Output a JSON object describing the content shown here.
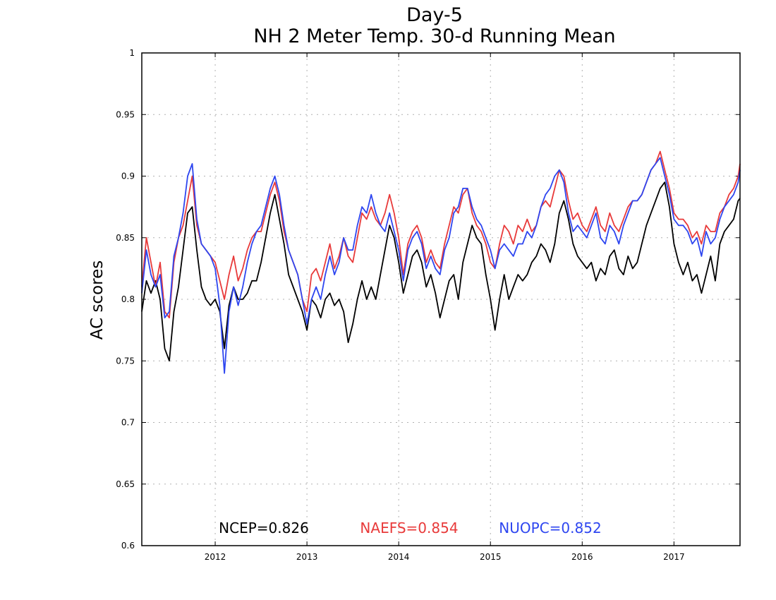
{
  "chart_data": {
    "type": "line",
    "title": "Day-5",
    "subtitle": "NH 2 Meter Temp. 30-d Running Mean",
    "xlabel": "",
    "ylabel": "AC scores",
    "xlim": [
      2011.2,
      2017.72
    ],
    "ylim": [
      0.6,
      1.0
    ],
    "yticks": [
      0.6,
      0.65,
      0.7,
      0.75,
      0.8,
      0.85,
      0.9,
      0.95,
      1
    ],
    "ytick_labels": [
      "0.6",
      "0.65",
      "0.7",
      "0.75",
      "0.8",
      "0.85",
      "0.9",
      "0.95",
      "1"
    ],
    "xticks": [
      2012,
      2013,
      2014,
      2015,
      2016,
      2017
    ],
    "xtick_labels": [
      "2012",
      "2013",
      "2014",
      "2015",
      "2016",
      "2017"
    ],
    "grid": true,
    "legend": "bottom",
    "series": [
      {
        "name": "NCEP",
        "label": "NCEP=0.826",
        "color": "#000000",
        "x": [
          2011.2,
          2011.25,
          2011.3,
          2011.35,
          2011.4,
          2011.45,
          2011.5,
          2011.55,
          2011.6,
          2011.65,
          2011.7,
          2011.75,
          2011.8,
          2011.85,
          2011.9,
          2011.95,
          2012.0,
          2012.05,
          2012.1,
          2012.15,
          2012.2,
          2012.25,
          2012.3,
          2012.35,
          2012.4,
          2012.45,
          2012.5,
          2012.55,
          2012.6,
          2012.65,
          2012.7,
          2012.75,
          2012.8,
          2012.85,
          2012.9,
          2012.95,
          2013.0,
          2013.05,
          2013.1,
          2013.15,
          2013.2,
          2013.25,
          2013.3,
          2013.35,
          2013.4,
          2013.45,
          2013.5,
          2013.55,
          2013.6,
          2013.65,
          2013.7,
          2013.75,
          2013.8,
          2013.85,
          2013.9,
          2013.95,
          2014.0,
          2014.05,
          2014.1,
          2014.15,
          2014.2,
          2014.25,
          2014.3,
          2014.35,
          2014.4,
          2014.45,
          2014.5,
          2014.55,
          2014.6,
          2014.65,
          2014.7,
          2014.75,
          2014.8,
          2014.85,
          2014.9,
          2014.95,
          2015.0,
          2015.05,
          2015.1,
          2015.15,
          2015.2,
          2015.25,
          2015.3,
          2015.35,
          2015.4,
          2015.45,
          2015.5,
          2015.55,
          2015.6,
          2015.65,
          2015.7,
          2015.75,
          2015.8,
          2015.85,
          2015.9,
          2015.95,
          2016.0,
          2016.05,
          2016.1,
          2016.15,
          2016.2,
          2016.25,
          2016.3,
          2016.35,
          2016.4,
          2016.45,
          2016.5,
          2016.55,
          2016.6,
          2016.65,
          2016.7,
          2016.75,
          2016.8,
          2016.85,
          2016.9,
          2016.95,
          2017.0,
          2017.05,
          2017.1,
          2017.15,
          2017.2,
          2017.25,
          2017.3,
          2017.35,
          2017.4,
          2017.45,
          2017.5,
          2017.55,
          2017.6,
          2017.65,
          2017.7,
          2017.72
        ],
        "values": [
          0.79,
          0.815,
          0.805,
          0.815,
          0.8,
          0.76,
          0.75,
          0.79,
          0.81,
          0.84,
          0.87,
          0.875,
          0.84,
          0.81,
          0.8,
          0.795,
          0.8,
          0.79,
          0.76,
          0.795,
          0.81,
          0.8,
          0.8,
          0.805,
          0.815,
          0.815,
          0.83,
          0.85,
          0.87,
          0.885,
          0.865,
          0.845,
          0.82,
          0.81,
          0.8,
          0.79,
          0.775,
          0.8,
          0.795,
          0.785,
          0.8,
          0.805,
          0.795,
          0.8,
          0.79,
          0.765,
          0.78,
          0.8,
          0.815,
          0.8,
          0.81,
          0.8,
          0.82,
          0.84,
          0.86,
          0.85,
          0.83,
          0.805,
          0.82,
          0.835,
          0.84,
          0.83,
          0.81,
          0.82,
          0.805,
          0.785,
          0.8,
          0.815,
          0.82,
          0.8,
          0.83,
          0.845,
          0.86,
          0.85,
          0.845,
          0.82,
          0.8,
          0.775,
          0.8,
          0.82,
          0.8,
          0.81,
          0.82,
          0.815,
          0.82,
          0.83,
          0.835,
          0.845,
          0.84,
          0.83,
          0.845,
          0.87,
          0.88,
          0.865,
          0.845,
          0.835,
          0.83,
          0.825,
          0.83,
          0.815,
          0.825,
          0.82,
          0.835,
          0.84,
          0.825,
          0.82,
          0.835,
          0.825,
          0.83,
          0.845,
          0.86,
          0.87,
          0.88,
          0.89,
          0.895,
          0.875,
          0.845,
          0.83,
          0.82,
          0.83,
          0.815,
          0.82,
          0.805,
          0.82,
          0.835,
          0.815,
          0.845,
          0.855,
          0.86,
          0.865,
          0.88,
          0.882
        ]
      },
      {
        "name": "NAEFS",
        "label": "NAEFS=0.854",
        "color": "#e83a3a",
        "x": [
          2011.2,
          2011.25,
          2011.3,
          2011.35,
          2011.4,
          2011.45,
          2011.5,
          2011.55,
          2011.6,
          2011.65,
          2011.7,
          2011.75,
          2011.8,
          2011.85,
          2011.9,
          2011.95,
          2012.0,
          2012.05,
          2012.1,
          2012.15,
          2012.2,
          2012.25,
          2012.3,
          2012.35,
          2012.4,
          2012.45,
          2012.5,
          2012.55,
          2012.6,
          2012.65,
          2012.7,
          2012.75,
          2012.8,
          2012.85,
          2012.9,
          2012.95,
          2013.0,
          2013.05,
          2013.1,
          2013.15,
          2013.2,
          2013.25,
          2013.3,
          2013.35,
          2013.4,
          2013.45,
          2013.5,
          2013.55,
          2013.6,
          2013.65,
          2013.7,
          2013.75,
          2013.8,
          2013.85,
          2013.9,
          2013.95,
          2014.0,
          2014.05,
          2014.1,
          2014.15,
          2014.2,
          2014.25,
          2014.3,
          2014.35,
          2014.4,
          2014.45,
          2014.5,
          2014.55,
          2014.6,
          2014.65,
          2014.7,
          2014.75,
          2014.8,
          2014.85,
          2014.9,
          2014.95,
          2015.0,
          2015.05,
          2015.1,
          2015.15,
          2015.2,
          2015.25,
          2015.3,
          2015.35,
          2015.4,
          2015.45,
          2015.5,
          2015.55,
          2015.6,
          2015.65,
          2015.7,
          2015.75,
          2015.8,
          2015.85,
          2015.9,
          2015.95,
          2016.0,
          2016.05,
          2016.1,
          2016.15,
          2016.2,
          2016.25,
          2016.3,
          2016.35,
          2016.4,
          2016.45,
          2016.5,
          2016.55,
          2016.6,
          2016.65,
          2016.7,
          2016.75,
          2016.8,
          2016.85,
          2016.9,
          2016.95,
          2017.0,
          2017.05,
          2017.1,
          2017.15,
          2017.2,
          2017.25,
          2017.3,
          2017.35,
          2017.4,
          2017.45,
          2017.5,
          2017.55,
          2017.6,
          2017.65,
          2017.7,
          2017.72
        ],
        "values": [
          0.81,
          0.85,
          0.83,
          0.81,
          0.83,
          0.79,
          0.785,
          0.83,
          0.85,
          0.86,
          0.88,
          0.9,
          0.86,
          0.845,
          0.84,
          0.835,
          0.83,
          0.815,
          0.8,
          0.82,
          0.835,
          0.815,
          0.825,
          0.84,
          0.85,
          0.855,
          0.855,
          0.87,
          0.885,
          0.895,
          0.88,
          0.855,
          0.84,
          0.83,
          0.82,
          0.8,
          0.79,
          0.82,
          0.825,
          0.815,
          0.83,
          0.845,
          0.825,
          0.835,
          0.85,
          0.835,
          0.83,
          0.85,
          0.87,
          0.865,
          0.875,
          0.865,
          0.86,
          0.87,
          0.885,
          0.87,
          0.85,
          0.82,
          0.845,
          0.855,
          0.86,
          0.85,
          0.83,
          0.84,
          0.83,
          0.825,
          0.845,
          0.86,
          0.875,
          0.87,
          0.885,
          0.89,
          0.87,
          0.86,
          0.855,
          0.845,
          0.83,
          0.825,
          0.845,
          0.86,
          0.855,
          0.845,
          0.86,
          0.855,
          0.865,
          0.855,
          0.86,
          0.875,
          0.88,
          0.875,
          0.89,
          0.905,
          0.9,
          0.88,
          0.865,
          0.87,
          0.86,
          0.855,
          0.865,
          0.875,
          0.86,
          0.855,
          0.87,
          0.86,
          0.855,
          0.865,
          0.875,
          0.88,
          0.88,
          0.885,
          0.895,
          0.905,
          0.91,
          0.92,
          0.905,
          0.89,
          0.87,
          0.865,
          0.865,
          0.86,
          0.85,
          0.855,
          0.845,
          0.86,
          0.855,
          0.855,
          0.87,
          0.875,
          0.885,
          0.89,
          0.9,
          0.91
        ]
      },
      {
        "name": "NUOPC",
        "label": "NUOPC=0.852",
        "color": "#2e46f0",
        "x": [
          2011.2,
          2011.25,
          2011.3,
          2011.35,
          2011.4,
          2011.45,
          2011.5,
          2011.55,
          2011.6,
          2011.65,
          2011.7,
          2011.75,
          2011.8,
          2011.85,
          2011.9,
          2011.95,
          2012.0,
          2012.05,
          2012.1,
          2012.15,
          2012.2,
          2012.25,
          2012.3,
          2012.35,
          2012.4,
          2012.45,
          2012.5,
          2012.55,
          2012.6,
          2012.65,
          2012.7,
          2012.75,
          2012.8,
          2012.85,
          2012.9,
          2012.95,
          2013.0,
          2013.05,
          2013.1,
          2013.15,
          2013.2,
          2013.25,
          2013.3,
          2013.35,
          2013.4,
          2013.45,
          2013.5,
          2013.55,
          2013.6,
          2013.65,
          2013.7,
          2013.75,
          2013.8,
          2013.85,
          2013.9,
          2013.95,
          2014.0,
          2014.05,
          2014.1,
          2014.15,
          2014.2,
          2014.25,
          2014.3,
          2014.35,
          2014.4,
          2014.45,
          2014.5,
          2014.55,
          2014.6,
          2014.65,
          2014.7,
          2014.75,
          2014.8,
          2014.85,
          2014.9,
          2014.95,
          2015.0,
          2015.05,
          2015.1,
          2015.15,
          2015.2,
          2015.25,
          2015.3,
          2015.35,
          2015.4,
          2015.45,
          2015.5,
          2015.55,
          2015.6,
          2015.65,
          2015.7,
          2015.75,
          2015.8,
          2015.85,
          2015.9,
          2015.95,
          2016.0,
          2016.05,
          2016.1,
          2016.15,
          2016.2,
          2016.25,
          2016.3,
          2016.35,
          2016.4,
          2016.45,
          2016.5,
          2016.55,
          2016.6,
          2016.65,
          2016.7,
          2016.75,
          2016.8,
          2016.85,
          2016.9,
          2016.95,
          2017.0,
          2017.05,
          2017.1,
          2017.15,
          2017.2,
          2017.25,
          2017.3,
          2017.35,
          2017.4,
          2017.45,
          2017.5,
          2017.55,
          2017.6,
          2017.65,
          2017.7,
          2017.72
        ],
        "values": [
          0.805,
          0.84,
          0.82,
          0.81,
          0.82,
          0.785,
          0.79,
          0.835,
          0.85,
          0.87,
          0.9,
          0.91,
          0.865,
          0.845,
          0.84,
          0.835,
          0.825,
          0.795,
          0.74,
          0.79,
          0.81,
          0.795,
          0.81,
          0.83,
          0.845,
          0.855,
          0.86,
          0.875,
          0.89,
          0.9,
          0.885,
          0.86,
          0.84,
          0.83,
          0.82,
          0.8,
          0.78,
          0.8,
          0.81,
          0.8,
          0.82,
          0.835,
          0.82,
          0.83,
          0.85,
          0.84,
          0.84,
          0.86,
          0.875,
          0.87,
          0.885,
          0.87,
          0.86,
          0.855,
          0.87,
          0.855,
          0.84,
          0.815,
          0.84,
          0.85,
          0.855,
          0.845,
          0.825,
          0.835,
          0.825,
          0.82,
          0.84,
          0.85,
          0.87,
          0.875,
          0.89,
          0.89,
          0.875,
          0.865,
          0.86,
          0.85,
          0.84,
          0.825,
          0.84,
          0.845,
          0.84,
          0.835,
          0.845,
          0.845,
          0.855,
          0.85,
          0.86,
          0.875,
          0.885,
          0.89,
          0.9,
          0.905,
          0.895,
          0.87,
          0.855,
          0.86,
          0.855,
          0.85,
          0.86,
          0.87,
          0.85,
          0.845,
          0.86,
          0.855,
          0.845,
          0.86,
          0.87,
          0.88,
          0.88,
          0.885,
          0.895,
          0.905,
          0.91,
          0.915,
          0.9,
          0.885,
          0.865,
          0.86,
          0.86,
          0.855,
          0.845,
          0.85,
          0.835,
          0.855,
          0.845,
          0.85,
          0.865,
          0.875,
          0.88,
          0.885,
          0.895,
          0.905
        ]
      }
    ]
  }
}
